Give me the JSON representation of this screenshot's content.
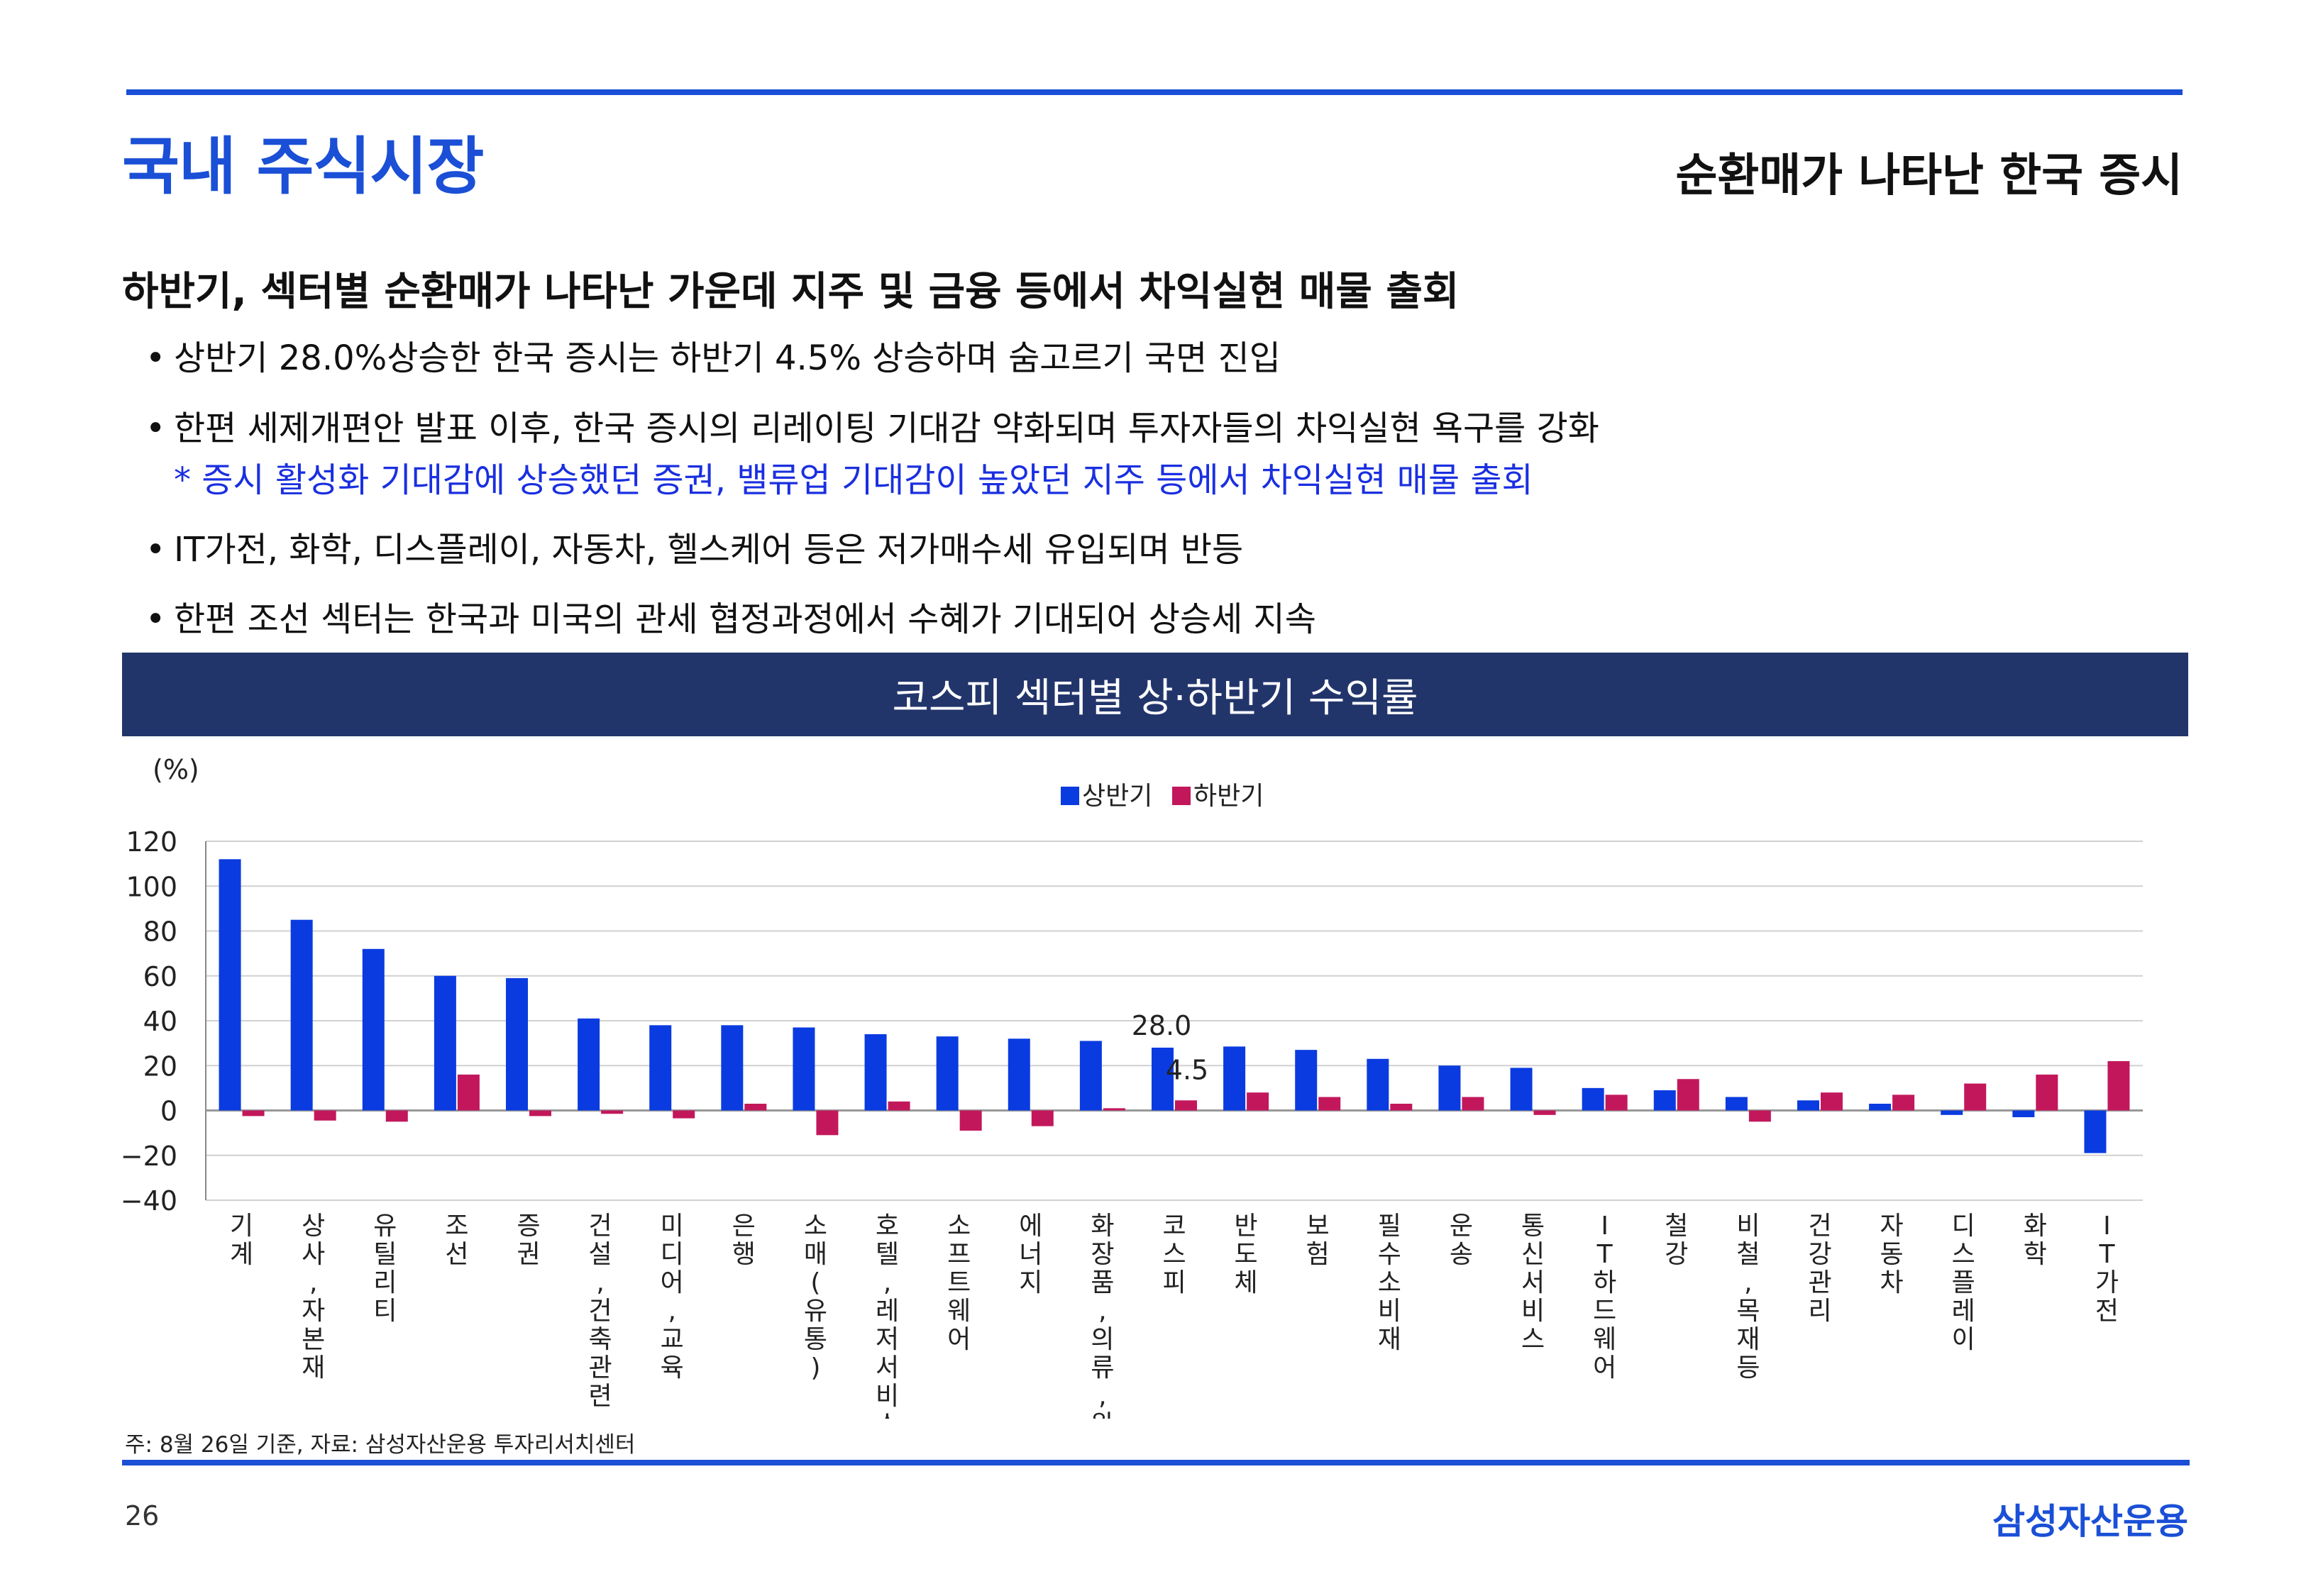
{
  "header": {
    "title": "국내 주식시장",
    "subtitle": "순환매가 나타난 한국 증시"
  },
  "headline": "하반기, 섹터별 순환매가 나타난 가운데 지주 및 금융 등에서 차익실현 매물 출회",
  "bullets": [
    "상반기 28.0%상승한 한국 증시는 하반기 4.5% 상승하며 숨고르기 국면 진입",
    "한편 세제개편안 발표 이후, 한국 증시의 리레이팅 기대감 약화되며 투자자들의 차익실현 욕구를 강화",
    "IT가전, 화학, 디스플레이, 자동차, 헬스케어 등은 저가매수세 유입되며 반등",
    "한편 조선 섹터는 한국과 미국의 관세 협정과정에서 수혜가 기대되어 상승세 지속"
  ],
  "note": "* 증시 활성화 기대감에 상승했던 증권, 밸류업 기대감이 높았던 지주 등에서 차익실현 매물 출회",
  "chart_title": "코스피 섹터별 상·하반기 수익률",
  "chart_data": {
    "type": "bar",
    "ylabel": "(%)",
    "ylim": [
      -40,
      120
    ],
    "yticks": [
      -40,
      -20,
      0,
      20,
      40,
      60,
      80,
      100,
      120
    ],
    "grid": true,
    "legend_position": "top-center",
    "categories": [
      "기계",
      "상사,자본재",
      "유틸리티",
      "조선",
      "증권",
      "건설,건축관련",
      "미디어,교육",
      "은행",
      "소매(유통)",
      "호텔,레저서비스",
      "소프트웨어",
      "에너지",
      "화장품,의류,완구",
      "코스피",
      "반도체",
      "보험",
      "필수소비재",
      "운송",
      "통신서비스",
      "IT하드웨어",
      "철강",
      "비철,목재등",
      "건강관리",
      "자동차",
      "디스플레이",
      "화학",
      "IT가전"
    ],
    "series": [
      {
        "name": "상반기",
        "color": "#0a3be0",
        "values": [
          112,
          85,
          72,
          60,
          59,
          41,
          38,
          38,
          37,
          34,
          33,
          32,
          31,
          28,
          28.5,
          27,
          23,
          20,
          19,
          10,
          9,
          6,
          4.5,
          3,
          -2,
          -3,
          -19
        ]
      },
      {
        "name": "하반기",
        "color": "#c2185b",
        "values": [
          -2.5,
          -4.5,
          -5,
          16,
          -2.5,
          -1.5,
          -3.5,
          3,
          -11,
          4,
          -9,
          -7,
          1,
          4.5,
          8,
          6,
          3,
          6,
          -2,
          7,
          14,
          -5,
          8,
          7,
          12,
          16,
          22
        ]
      }
    ],
    "annotations": [
      "28.0",
      "4.5"
    ]
  },
  "footnote": "주: 8월 26일 기준, 자료: 삼성자산운용 투자리서치센터",
  "page_number": "26",
  "brand": "삼성자산운용"
}
